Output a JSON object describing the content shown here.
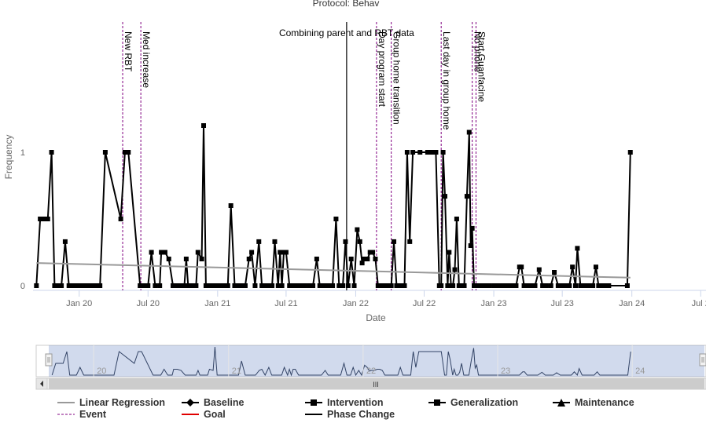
{
  "chart_data": {
    "type": "line",
    "title": "Combining parent and RBT data",
    "top_clipped_title": "Protocol: Behav",
    "xlabel": "Date",
    "ylabel": "Frequency",
    "ylim": [
      0,
      1.05
    ],
    "yticks": [
      0,
      1
    ],
    "x_ticks": [
      {
        "date": "2020-01-01",
        "label": "Jan 20"
      },
      {
        "date": "2020-07-01",
        "label": "Jul 20"
      },
      {
        "date": "2021-01-01",
        "label": "Jan 21"
      },
      {
        "date": "2021-07-01",
        "label": "Jul 21"
      },
      {
        "date": "2022-01-01",
        "label": "Jan 22"
      },
      {
        "date": "2022-07-01",
        "label": "Jul 22"
      },
      {
        "date": "2023-01-01",
        "label": "Jan 23"
      },
      {
        "date": "2023-07-01",
        "label": "Jul 23"
      },
      {
        "date": "2024-01-01",
        "label": "Jan 24"
      },
      {
        "date": "2024-07-01",
        "label": "Jul 2"
      }
    ],
    "series": [
      {
        "name": "Intervention",
        "color": "#000000",
        "marker": "square",
        "points": [
          [
            "2019-09-10",
            0
          ],
          [
            "2019-09-20",
            0.5
          ],
          [
            "2019-10-01",
            0.5
          ],
          [
            "2019-10-10",
            0.5
          ],
          [
            "2019-10-20",
            1
          ],
          [
            "2019-10-28",
            0
          ],
          [
            "2019-11-05",
            0
          ],
          [
            "2019-11-15",
            0
          ],
          [
            "2019-11-25",
            0.33
          ],
          [
            "2019-12-05",
            0
          ],
          [
            "2019-12-15",
            0
          ],
          [
            "2019-12-25",
            0
          ],
          [
            "2020-01-05",
            0
          ],
          [
            "2020-01-15",
            0
          ],
          [
            "2020-01-25",
            0
          ],
          [
            "2020-02-05",
            0
          ],
          [
            "2020-02-15",
            0
          ],
          [
            "2020-02-25",
            0
          ],
          [
            "2020-03-10",
            1
          ],
          [
            "2020-04-20",
            0.5
          ],
          [
            "2020-05-01",
            1
          ],
          [
            "2020-05-10",
            1
          ],
          [
            "2020-06-10",
            0
          ],
          [
            "2020-06-20",
            0
          ],
          [
            "2020-07-01",
            0
          ],
          [
            "2020-07-10",
            0.25
          ],
          [
            "2020-07-20",
            0
          ],
          [
            "2020-08-01",
            0
          ],
          [
            "2020-08-05",
            0.25
          ],
          [
            "2020-08-15",
            0.25
          ],
          [
            "2020-08-25",
            0.2
          ],
          [
            "2020-09-05",
            0
          ],
          [
            "2020-09-15",
            0
          ],
          [
            "2020-09-25",
            0
          ],
          [
            "2020-10-05",
            0
          ],
          [
            "2020-10-10",
            0.2
          ],
          [
            "2020-10-15",
            0
          ],
          [
            "2020-10-25",
            0
          ],
          [
            "2020-11-05",
            0
          ],
          [
            "2020-11-10",
            0.25
          ],
          [
            "2020-11-20",
            0.2
          ],
          [
            "2020-11-25",
            1.2
          ],
          [
            "2020-12-01",
            0
          ],
          [
            "2020-12-10",
            0
          ],
          [
            "2020-12-20",
            0
          ],
          [
            "2021-01-01",
            0
          ],
          [
            "2021-01-10",
            0
          ],
          [
            "2021-01-20",
            0
          ],
          [
            "2021-01-28",
            0
          ],
          [
            "2021-02-05",
            0.6
          ],
          [
            "2021-02-15",
            0
          ],
          [
            "2021-02-25",
            0
          ],
          [
            "2021-03-05",
            0
          ],
          [
            "2021-03-15",
            0
          ],
          [
            "2021-03-25",
            0.2
          ],
          [
            "2021-04-01",
            0.25
          ],
          [
            "2021-04-10",
            0
          ],
          [
            "2021-04-20",
            0.33
          ],
          [
            "2021-04-28",
            0
          ],
          [
            "2021-05-05",
            0
          ],
          [
            "2021-05-15",
            0
          ],
          [
            "2021-05-25",
            0
          ],
          [
            "2021-06-01",
            0.33
          ],
          [
            "2021-06-10",
            0
          ],
          [
            "2021-06-15",
            0.25
          ],
          [
            "2021-06-20",
            0
          ],
          [
            "2021-06-25",
            0.25
          ],
          [
            "2021-07-01",
            0.25
          ],
          [
            "2021-07-10",
            0
          ],
          [
            "2021-07-20",
            0
          ],
          [
            "2021-08-01",
            0
          ],
          [
            "2021-08-10",
            0
          ],
          [
            "2021-08-20",
            0
          ],
          [
            "2021-09-01",
            0
          ],
          [
            "2021-09-10",
            0
          ],
          [
            "2021-09-20",
            0.2
          ],
          [
            "2021-09-28",
            0
          ],
          [
            "2021-10-05",
            0
          ],
          [
            "2021-10-15",
            0
          ],
          [
            "2021-10-25",
            0
          ],
          [
            "2021-11-01",
            0
          ],
          [
            "2021-11-10",
            0.5
          ],
          [
            "2021-11-18",
            0
          ],
          [
            "2021-11-28",
            0
          ],
          [
            "2021-12-05",
            0.33
          ],
          [
            "2021-12-12",
            0
          ],
          [
            "2021-12-20",
            0.2
          ],
          [
            "2021-12-28",
            0
          ],
          [
            "2022-01-05",
            0.42
          ],
          [
            "2022-01-12",
            0.33
          ],
          [
            "2022-01-18",
            0.17
          ],
          [
            "2022-01-24",
            0.2
          ],
          [
            "2022-02-01",
            0.2
          ],
          [
            "2022-02-08",
            0.25
          ],
          [
            "2022-02-15",
            0.25
          ],
          [
            "2022-02-22",
            0.2
          ],
          [
            "2022-03-01",
            0
          ],
          [
            "2022-03-08",
            0
          ],
          [
            "2022-03-15",
            0
          ],
          [
            "2022-03-22",
            0
          ],
          [
            "2022-03-29",
            0
          ],
          [
            "2022-04-05",
            0
          ],
          [
            "2022-04-12",
            0.33
          ],
          [
            "2022-04-19",
            0
          ],
          [
            "2022-04-26",
            0
          ],
          [
            "2022-05-03",
            0
          ],
          [
            "2022-05-10",
            0
          ],
          [
            "2022-05-17",
            1
          ],
          [
            "2022-05-24",
            0.33
          ],
          [
            "2022-06-01",
            1
          ],
          [
            "2022-06-20",
            1
          ],
          [
            "2022-07-10",
            1
          ],
          [
            "2022-07-20",
            1
          ],
          [
            "2022-08-01",
            1
          ],
          [
            "2022-08-10",
            0
          ],
          [
            "2022-08-15",
            0
          ],
          [
            "2022-08-20",
            1
          ],
          [
            "2022-08-25",
            0.67
          ],
          [
            "2022-09-01",
            0
          ],
          [
            "2022-09-05",
            0.25
          ],
          [
            "2022-09-10",
            0
          ],
          [
            "2022-09-15",
            0
          ],
          [
            "2022-09-20",
            0.12
          ],
          [
            "2022-09-25",
            0.5
          ],
          [
            "2022-10-01",
            0
          ],
          [
            "2022-10-05",
            0
          ],
          [
            "2022-10-15",
            0
          ],
          [
            "2022-10-22",
            0.67
          ],
          [
            "2022-10-28",
            1.15
          ],
          [
            "2022-11-01",
            0.3
          ],
          [
            "2022-11-05",
            0.43
          ],
          [
            "2022-11-10",
            0
          ],
          [
            "2022-11-15",
            0
          ],
          [
            "2022-11-20",
            0
          ],
          [
            "2022-11-25",
            0
          ],
          [
            "2022-12-01",
            0
          ],
          [
            "2022-12-10",
            0
          ],
          [
            "2022-12-20",
            0
          ],
          [
            "2023-01-01",
            0
          ],
          [
            "2023-01-10",
            0
          ],
          [
            "2023-01-20",
            0
          ],
          [
            "2023-02-01",
            0
          ],
          [
            "2023-02-10",
            0
          ],
          [
            "2023-02-20",
            0
          ],
          [
            "2023-03-01",
            0
          ],
          [
            "2023-03-10",
            0.14
          ],
          [
            "2023-03-15",
            0.14
          ],
          [
            "2023-03-22",
            0
          ],
          [
            "2023-04-01",
            0
          ],
          [
            "2023-04-10",
            0
          ],
          [
            "2023-04-20",
            0
          ],
          [
            "2023-05-01",
            0.12
          ],
          [
            "2023-05-10",
            0
          ],
          [
            "2023-05-20",
            0
          ],
          [
            "2023-06-01",
            0
          ],
          [
            "2023-06-10",
            0.1
          ],
          [
            "2023-06-20",
            0
          ],
          [
            "2023-07-01",
            0
          ],
          [
            "2023-07-10",
            0
          ],
          [
            "2023-07-20",
            0
          ],
          [
            "2023-07-28",
            0.14
          ],
          [
            "2023-08-05",
            0
          ],
          [
            "2023-08-10",
            0.28
          ],
          [
            "2023-08-18",
            0
          ],
          [
            "2023-08-25",
            0
          ],
          [
            "2023-09-01",
            0
          ],
          [
            "2023-09-10",
            0
          ],
          [
            "2023-09-20",
            0
          ],
          [
            "2023-09-28",
            0.14
          ],
          [
            "2023-10-05",
            0
          ],
          [
            "2023-10-15",
            0
          ],
          [
            "2023-10-25",
            0
          ],
          [
            "2023-11-01",
            0
          ],
          [
            "2023-12-20",
            0
          ],
          [
            "2023-12-28",
            1
          ]
        ]
      },
      {
        "name": "Linear Regression",
        "color": "#999999",
        "points": [
          [
            "2019-09-10",
            0.17
          ],
          [
            "2023-12-28",
            0.06
          ]
        ]
      }
    ],
    "events": [
      {
        "date": "2020-04-25",
        "label": "New RBT"
      },
      {
        "date": "2020-06-12",
        "label": "Med increase"
      },
      {
        "date": "2022-02-25",
        "label": "Day program start"
      },
      {
        "date": "2022-04-05",
        "label": "Group home transition"
      },
      {
        "date": "2022-08-15",
        "label": "Last day in group home"
      },
      {
        "date": "2022-11-05",
        "label": "No phone"
      },
      {
        "date": "2022-11-15",
        "label": "Start Guanfacine"
      }
    ],
    "phase_changes": [
      {
        "date": "2021-12-08",
        "label": "Combining parent and RBT data"
      }
    ],
    "navigator": {
      "labels": [
        "20",
        "21",
        "22",
        "23",
        "24"
      ],
      "scrollbar_grip": "III"
    },
    "legend": [
      {
        "name": "Linear Regression",
        "symbol": "line",
        "color": "#999999"
      },
      {
        "name": "Baseline",
        "symbol": "diamond-line",
        "color": "#000000"
      },
      {
        "name": "Intervention",
        "symbol": "square-line",
        "color": "#000000"
      },
      {
        "name": "Generalization",
        "symbol": "square-line",
        "color": "#000000"
      },
      {
        "name": "Maintenance",
        "symbol": "triangle-line",
        "color": "#000000"
      },
      {
        "name": "Event",
        "symbol": "dash",
        "color": "#800080"
      },
      {
        "name": "Goal",
        "symbol": "line",
        "color": "#e00000"
      },
      {
        "name": "Phase Change",
        "symbol": "line",
        "color": "#000000"
      }
    ]
  }
}
